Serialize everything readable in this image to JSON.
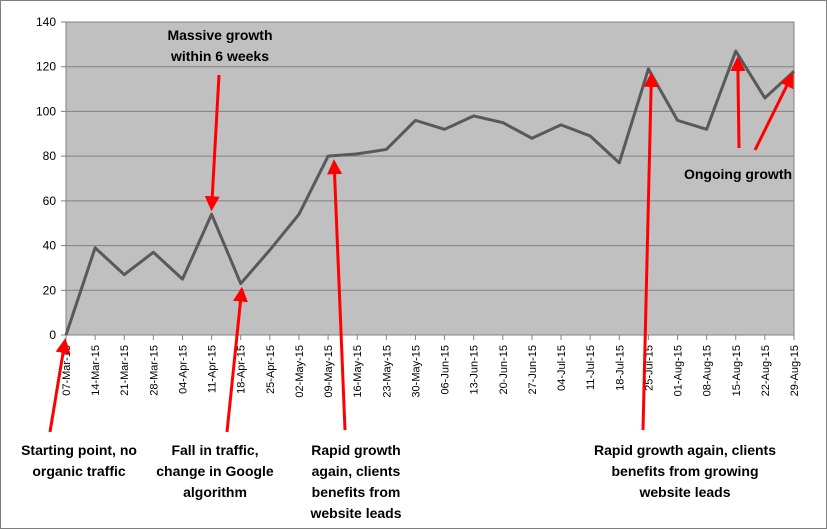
{
  "chart_data": {
    "type": "line",
    "title": "",
    "xlabel": "",
    "ylabel": "",
    "ylim": [
      0,
      140
    ],
    "yticks": [
      0,
      20,
      40,
      60,
      80,
      100,
      120,
      140
    ],
    "grid": true,
    "legend": "none",
    "categories": [
      "07-Mar-15",
      "14-Mar-15",
      "21-Mar-15",
      "28-Mar-15",
      "04-Apr-15",
      "11-Apr-15",
      "18-Apr-15",
      "25-Apr-15",
      "02-May-15",
      "09-May-15",
      "16-May-15",
      "23-May-15",
      "30-May-15",
      "06-Jun-15",
      "13-Jun-15",
      "20-Jun-15",
      "27-Jun-15",
      "04-Jul-15",
      "11-Jul-15",
      "18-Jul-15",
      "25-Jul-15",
      "01-Aug-15",
      "08-Aug-15",
      "15-Aug-15",
      "22-Aug-15",
      "29-Aug-15"
    ],
    "values": [
      0,
      39,
      27,
      37,
      25,
      54,
      23,
      38,
      54,
      80,
      81,
      83,
      96,
      92,
      98,
      95,
      88,
      94,
      89,
      77,
      119,
      96,
      92,
      127,
      106,
      118
    ],
    "colors": {
      "line": "#595959",
      "plot_bg": "#c0c0c0",
      "grid": "#808080",
      "arrow": "#ff0000"
    },
    "annotations": [
      {
        "id": "start",
        "text": "Starting point, no\norganic traffic"
      },
      {
        "id": "peak",
        "text": "Massive growth\nwithin 6 weeks"
      },
      {
        "id": "fall",
        "text": "Fall in traffic,\nchange in Google\nalgorithm"
      },
      {
        "id": "rapid1",
        "text": "Rapid growth\nagain, clients\nbenefits from\nwebsite leads"
      },
      {
        "id": "rapid2",
        "text": "Rapid growth again, clients\nbenefits from growing\nwebsite leads"
      },
      {
        "id": "ongoing",
        "text": "Ongoing growth"
      }
    ]
  }
}
